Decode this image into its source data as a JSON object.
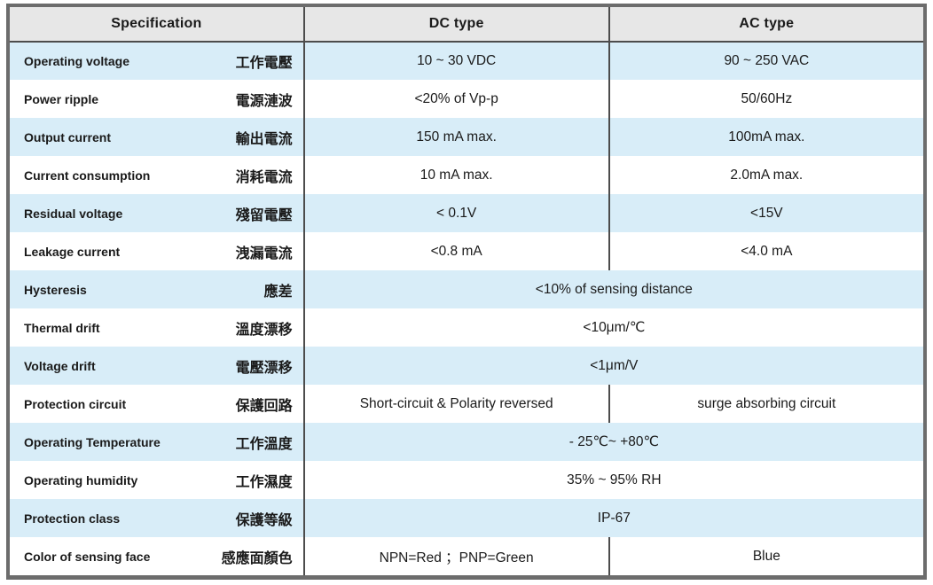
{
  "table": {
    "headers": {
      "specification": "Specification",
      "dc": "DC type",
      "ac": "AC type"
    },
    "rows": [
      {
        "en": "Operating voltage",
        "zh": "工作電壓",
        "dc": "10 ~ 30 VDC",
        "ac": "90 ~ 250 VAC",
        "span": false
      },
      {
        "en": "Power ripple",
        "zh": "電源漣波",
        "dc": "<20% of Vp-p",
        "ac": "50/60Hz",
        "span": false
      },
      {
        "en": "Output current",
        "zh": "輸出電流",
        "dc": "150 mA max.",
        "ac": "100mA max.",
        "span": false
      },
      {
        "en": "Current consumption",
        "zh": "消耗電流",
        "dc": "10 mA max.",
        "ac": "2.0mA max.",
        "span": false
      },
      {
        "en": "Residual voltage",
        "zh": "殘留電壓",
        "dc": "< 0.1V",
        "ac": "<15V",
        "span": false
      },
      {
        "en": "Leakage current",
        "zh": "洩漏電流",
        "dc": "<0.8 mA",
        "ac": "<4.0 mA",
        "span": false
      },
      {
        "en": "Hysteresis",
        "zh": "應差",
        "value": "<10% of sensing distance",
        "span": true
      },
      {
        "en": "Thermal drift",
        "zh": "溫度漂移",
        "value": "<10μm/℃",
        "span": true
      },
      {
        "en": "Voltage drift",
        "zh": "電壓漂移",
        "value": "<1μm/V",
        "span": true
      },
      {
        "en": "Protection circuit",
        "zh": "保護回路",
        "dc": "Short-circuit & Polarity reversed",
        "ac": "surge absorbing circuit",
        "span": false
      },
      {
        "en": "Operating Temperature",
        "zh": "工作溫度",
        "value": "- 25℃~ +80℃",
        "span": true
      },
      {
        "en": "Operating humidity",
        "zh": "工作濕度",
        "value": "35% ~ 95% RH",
        "span": true
      },
      {
        "en": "Protection class",
        "zh": "保護等級",
        "value": "IP-67",
        "span": true
      },
      {
        "en": "Color of sensing face",
        "zh": "感應面顏色",
        "dc": "NPN=Red ；PNP=Green",
        "ac": "Blue",
        "span": false
      }
    ],
    "colors": {
      "header_bg": "#e7e7e7",
      "row_alt_bg": "#d8edf8",
      "row_bg": "#ffffff",
      "border_dark": "#6c6c6c",
      "line": "#4c4c4c",
      "text": "#1a1a1a"
    }
  }
}
